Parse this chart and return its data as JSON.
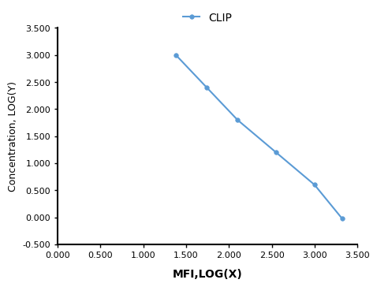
{
  "x": [
    1.38,
    1.74,
    2.1,
    2.55,
    3.0,
    3.32
  ],
  "y": [
    3.0,
    2.4,
    1.8,
    1.2,
    0.6,
    -0.02
  ],
  "line_color": "#5b9bd5",
  "marker_color": "#5b9bd5",
  "marker_style": "o",
  "marker_size": 4,
  "line_width": 1.5,
  "legend_label": "CLIP",
  "xlabel": "MFI,LOG(X)",
  "ylabel": "Concentration, LOG(Y)",
  "xlim": [
    0.0,
    3.5
  ],
  "ylim": [
    -0.5,
    3.5
  ],
  "xticks": [
    0.0,
    0.5,
    1.0,
    1.5,
    2.0,
    2.5,
    3.0,
    3.5
  ],
  "yticks": [
    -0.5,
    0.0,
    0.5,
    1.0,
    1.5,
    2.0,
    2.5,
    3.0,
    3.5
  ],
  "xlabel_fontsize": 10,
  "ylabel_fontsize": 9,
  "tick_fontsize": 8,
  "legend_fontsize": 10,
  "background_color": "#ffffff",
  "xlabel_fontweight": "bold",
  "spine_color": "#000000"
}
